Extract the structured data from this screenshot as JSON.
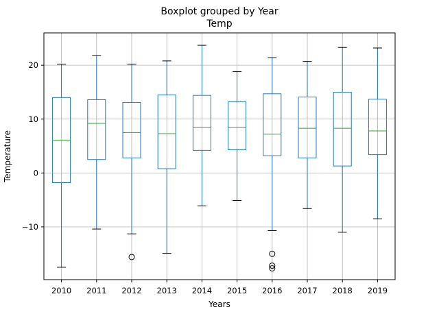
{
  "chart_data": {
    "type": "boxplot",
    "title": "Boxplot grouped by Year",
    "subtitle": "Temp",
    "xlabel": "Years",
    "ylabel": "Temperature",
    "ylim": [
      -19.8,
      26
    ],
    "yticks": [
      -10,
      0,
      10,
      20
    ],
    "grid": true,
    "box_color": "#1f77b4",
    "median_color": "#2ca02c",
    "whisker_cap_color": "#000000",
    "categories": [
      "2010",
      "2011",
      "2012",
      "2013",
      "2014",
      "2015",
      "2016",
      "2017",
      "2018",
      "2019"
    ],
    "boxes": [
      {
        "label": "2010",
        "whislo": -17.5,
        "q1": -1.8,
        "med": 6.1,
        "q3": 14.0,
        "whishi": 20.2,
        "fliers": []
      },
      {
        "label": "2011",
        "whislo": -10.4,
        "q1": 2.5,
        "med": 9.2,
        "q3": 13.6,
        "whishi": 21.8,
        "fliers": []
      },
      {
        "label": "2012",
        "whislo": -11.3,
        "q1": 2.8,
        "med": 7.5,
        "q3": 13.1,
        "whishi": 20.2,
        "fliers": [
          -15.6
        ]
      },
      {
        "label": "2013",
        "whislo": -14.9,
        "q1": 0.8,
        "med": 7.3,
        "q3": 14.5,
        "whishi": 20.8,
        "fliers": []
      },
      {
        "label": "2014",
        "whislo": -6.1,
        "q1": 4.2,
        "med": 8.5,
        "q3": 14.4,
        "whishi": 23.7,
        "fliers": []
      },
      {
        "label": "2015",
        "whislo": -5.1,
        "q1": 4.3,
        "med": 8.5,
        "q3": 13.2,
        "whishi": 18.8,
        "fliers": []
      },
      {
        "label": "2016",
        "whislo": -10.7,
        "q1": 3.2,
        "med": 7.2,
        "q3": 14.7,
        "whishi": 21.4,
        "fliers": [
          -15.0,
          -17.2,
          -17.7
        ]
      },
      {
        "label": "2017",
        "whislo": -6.6,
        "q1": 2.8,
        "med": 8.3,
        "q3": 14.1,
        "whishi": 20.7,
        "fliers": []
      },
      {
        "label": "2018",
        "whislo": -11.0,
        "q1": 1.3,
        "med": 8.3,
        "q3": 15.0,
        "whishi": 23.3,
        "fliers": []
      },
      {
        "label": "2019",
        "whislo": -8.5,
        "q1": 3.4,
        "med": 7.8,
        "q3": 13.7,
        "whishi": 23.2,
        "fliers": []
      }
    ]
  }
}
